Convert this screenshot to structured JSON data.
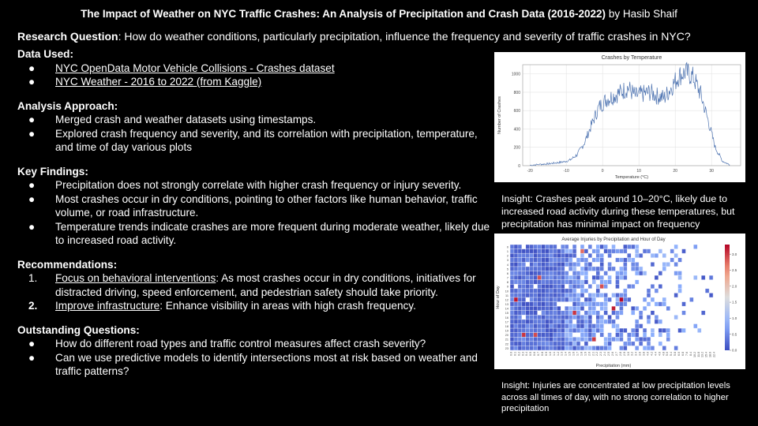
{
  "title": {
    "main": "The Impact of Weather on NYC Traffic Crashes: An Analysis of Precipitation and Crash Data (2016-2022)",
    "byline": "by Hasib Shaif"
  },
  "research_question": {
    "label": "Research Question",
    "text": ": How do weather conditions, particularly precipitation, influence the frequency and severity of traffic crashes in NYC?"
  },
  "data_used": {
    "heading": "Data Used:",
    "items": [
      "NYC OpenData Motor Vehicle Collisions - Crashes dataset",
      "NYC Weather - 2016 to 2022 (from Kaggle)"
    ]
  },
  "analysis": {
    "heading": "Analysis Approach:",
    "items": [
      "Merged crash and weather datasets using timestamps.",
      "Explored crash frequency and severity, and its correlation with precipitation, temperature, and time of day various plots"
    ]
  },
  "findings": {
    "heading": "Key Findings:",
    "items": [
      "Precipitation does not strongly correlate with higher crash frequency or injury severity.",
      "Most crashes occur in dry conditions, pointing to other factors like human behavior, traffic volume, or road infrastructure.",
      "Temperature trends indicate crashes are more frequent during moderate weather, likely due to increased road activity."
    ]
  },
  "recommendations": {
    "heading": "Recommendations:",
    "items": [
      {
        "num": "1.",
        "link": "Focus on behavioral interventions",
        "text": ": As most crashes occur in dry conditions, initiatives for distracted driving, speed enforcement, and pedestrian safety should take priority."
      },
      {
        "num": "2.",
        "link": "Improve infrastructure",
        "text": ": Enhance visibility in areas with high crash frequency."
      }
    ]
  },
  "questions": {
    "heading": "Outstanding Questions:",
    "items": [
      "How do different road types and traffic control measures affect crash severity?",
      "Can we use predictive models to identify intersections most at risk based on weather and traffic patterns?"
    ]
  },
  "bullet_char": "●",
  "insight1": "Insight: Crashes peak around 10–20°C, likely due to increased road activity during these temperatures, but precipitation has minimal impact on frequency",
  "insight2": "Insight: Injuries are concentrated at low precipitation levels across all times of day, with no strong correlation to higher precipitation",
  "chart_data": [
    {
      "type": "line",
      "title": "Crashes by Temperature",
      "xlabel": "Temperature (°C)",
      "ylabel": "Number of Crashes",
      "xlim": [
        -22,
        38
      ],
      "ylim": [
        0,
        1100
      ],
      "xticks": [
        -20,
        -10,
        0,
        10,
        20,
        30
      ],
      "yticks": [
        0,
        200,
        400,
        600,
        800,
        1000
      ],
      "color": "#4c72b0",
      "grid": true,
      "x": [
        -20,
        -17,
        -15,
        -13,
        -11,
        -9,
        -7,
        -5,
        -3,
        -1,
        1,
        3,
        5,
        7,
        9,
        11,
        13,
        15,
        17,
        19,
        21,
        23,
        25,
        27,
        29,
        31,
        33,
        35
      ],
      "y": [
        5,
        15,
        20,
        30,
        40,
        60,
        120,
        250,
        450,
        640,
        720,
        760,
        800,
        850,
        760,
        780,
        800,
        760,
        740,
        860,
        980,
        1020,
        960,
        780,
        500,
        200,
        50,
        10
      ]
    },
    {
      "type": "heatmap",
      "title": "Average Injuries by Precipitation and Hour of Day",
      "xlabel": "Precipitation (mm)",
      "ylabel": "Hour of Day",
      "colormap": "coolwarm",
      "colorbar_ticks": [
        0.0,
        0.5,
        1.0,
        1.5,
        2.0,
        2.5,
        3.0
      ],
      "colorbar_range": [
        0,
        3.3
      ],
      "hours": [
        "0",
        "1",
        "2",
        "3",
        "4",
        "5",
        "6",
        "7",
        "8",
        "9",
        "10",
        "11",
        "12",
        "13",
        "14",
        "15",
        "16",
        "17",
        "18",
        "19",
        "20",
        "21",
        "22",
        "23"
      ],
      "precip_ticks": [
        "0.0",
        "0.1",
        "0.2",
        "0.3",
        "0.4",
        "0.5",
        "0.6",
        "0.7",
        "0.8",
        "0.9",
        "1.0",
        "1.1",
        "1.2",
        "1.3",
        "1.4",
        "1.5",
        "1.6",
        "1.7",
        "1.8",
        "1.9",
        "2.0",
        "2.1",
        "2.2",
        "2.3",
        "2.4",
        "2.5",
        "2.6",
        "2.7",
        "2.8",
        "2.9",
        "3.0",
        "3.2",
        "3.4",
        "3.6",
        "3.8",
        "4.0",
        "4.2",
        "4.4",
        "4.6",
        "4.8",
        "5.0",
        "5.4",
        "5.8",
        "6.0",
        "6.8",
        "7.6",
        "8.4",
        "10.2",
        "11.8",
        "13.2",
        "15.4",
        "18.6",
        "22.4"
      ]
    }
  ]
}
